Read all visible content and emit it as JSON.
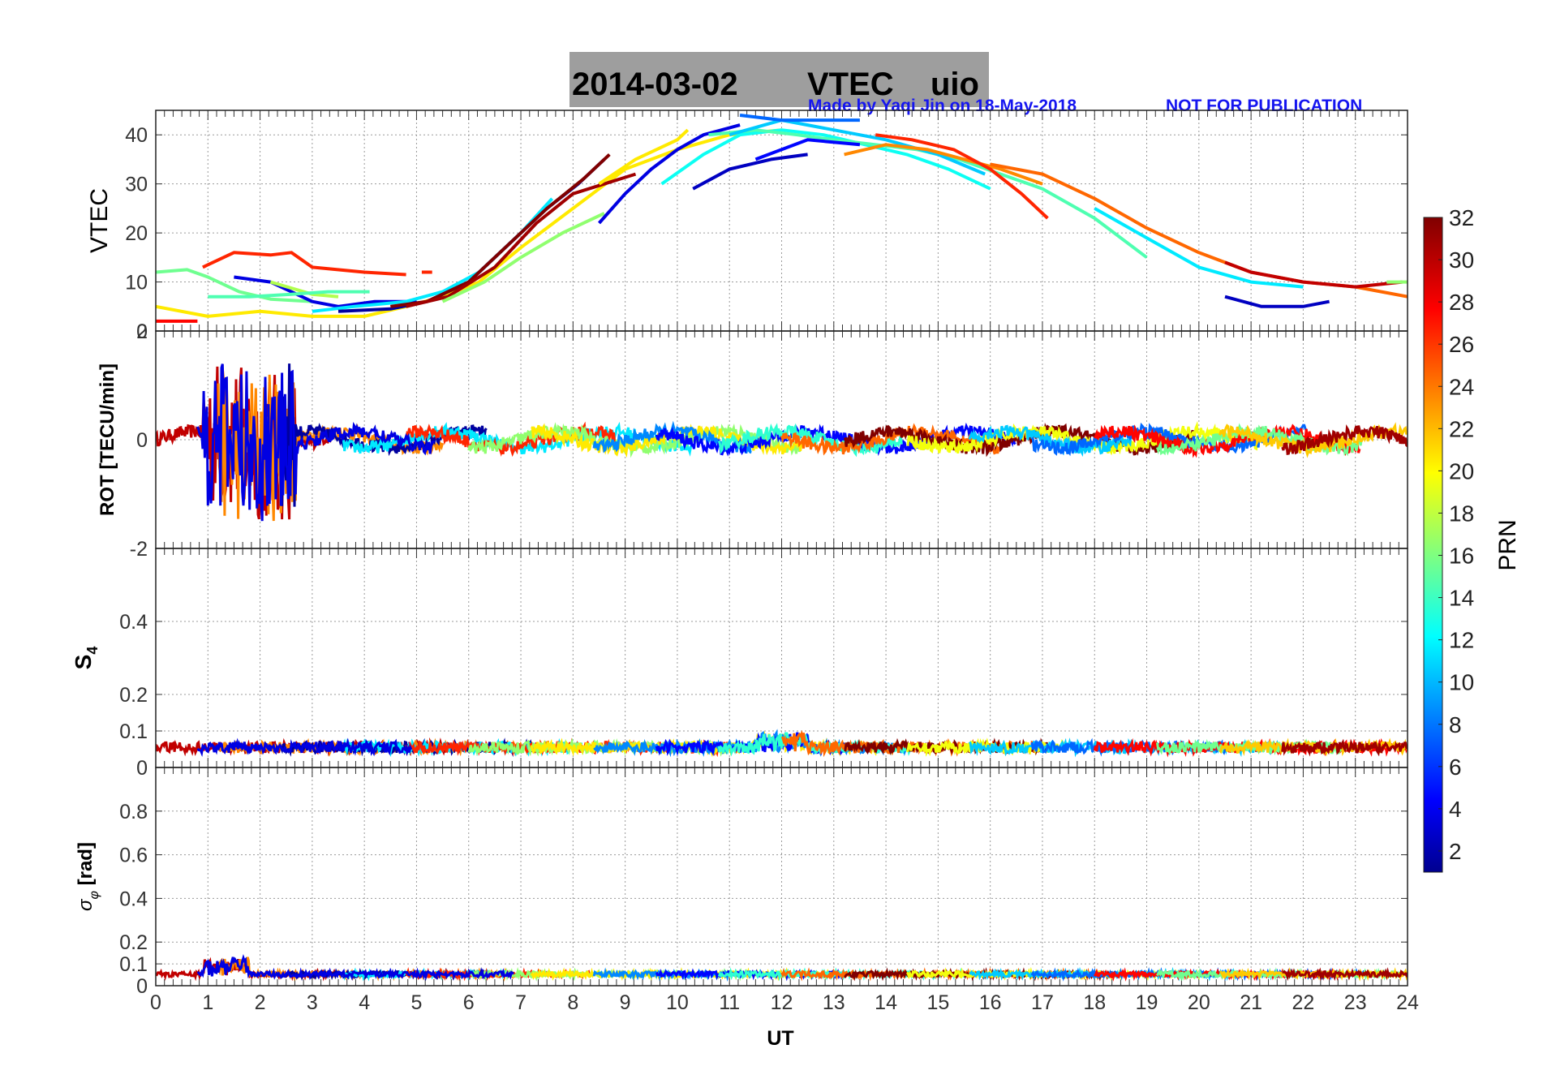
{
  "title": {
    "date": "2014-03-02",
    "name": "VTEC",
    "station": "uio"
  },
  "credit": "Made by Yaqi Jin on 18-May-2018",
  "notice": "NOT FOR PUBLICATION",
  "colors": {
    "title_bg": "#9e9e9e",
    "credit": "#1515f0",
    "grid": "#9a9a9a"
  },
  "chart_data": [
    {
      "type": "line",
      "id": "vtec",
      "ylabel": "VTEC",
      "ylim": [
        0,
        45
      ],
      "yticks": [
        {
          "v": 0,
          "label": "0"
        },
        {
          "v": 10,
          "label": "10"
        },
        {
          "v": 20,
          "label": "20"
        },
        {
          "v": 30,
          "label": "30"
        },
        {
          "v": 40,
          "label": "40"
        }
      ],
      "series": [
        {
          "prn": 28,
          "x": [
            0,
            0.8
          ],
          "y": [
            2,
            2
          ]
        },
        {
          "prn": 16,
          "x": [
            0,
            0.6,
            1.0,
            1.6,
            2.2,
            3.0
          ],
          "y": [
            12,
            12.5,
            11,
            8,
            6.5,
            6
          ]
        },
        {
          "prn": 27,
          "x": [
            0.9,
            1.5,
            2.2,
            2.6,
            3.0,
            4.0,
            4.8
          ],
          "y": [
            13,
            16,
            15.5,
            16,
            13,
            12,
            11.5
          ]
        },
        {
          "prn": 27,
          "x": [
            5.1,
            5.3
          ],
          "y": [
            12,
            12
          ]
        },
        {
          "prn": 21,
          "x": [
            0,
            1.0,
            2.0,
            3.0,
            4.0,
            4.8,
            5.5,
            6.2,
            7.0,
            8.0,
            9.0,
            10.0,
            11.0,
            12.0
          ],
          "y": [
            5,
            3,
            4,
            3,
            3,
            5,
            7,
            10,
            17,
            25,
            33,
            37,
            40,
            41
          ]
        },
        {
          "prn": 4,
          "x": [
            1.5,
            2.2,
            3.0,
            3.5,
            4.2,
            5.0
          ],
          "y": [
            11,
            10,
            6,
            5,
            6,
            6
          ]
        },
        {
          "prn": 18,
          "x": [
            2.2,
            3.0,
            3.5
          ],
          "y": [
            10,
            7.5,
            7
          ]
        },
        {
          "prn": 15,
          "x": [
            1.0,
            1.8,
            2.6,
            3.3,
            4.1
          ],
          "y": [
            7,
            7,
            7.5,
            8,
            8
          ]
        },
        {
          "prn": 12,
          "x": [
            3.0,
            3.8,
            4.8,
            5.5,
            6.2,
            7.0,
            7.6
          ],
          "y": [
            4,
            5,
            6,
            8,
            12,
            20,
            27
          ]
        },
        {
          "prn": 2,
          "x": [
            3.5,
            4.5,
            5.2,
            6.0,
            6.8,
            7.5,
            8.1,
            8.6
          ],
          "y": [
            4,
            4.5,
            6,
            10,
            18,
            25,
            30,
            35
          ]
        },
        {
          "prn": 32,
          "x": [
            4.5,
            5.2,
            6.0,
            6.8,
            7.5,
            8.2,
            8.7
          ],
          "y": [
            5,
            6,
            10,
            18,
            25,
            31,
            36
          ]
        },
        {
          "prn": 31,
          "x": [
            4.8,
            5.6,
            6.5,
            7.3,
            8.0,
            8.6,
            9.2
          ],
          "y": [
            5,
            7,
            13,
            22,
            28,
            30,
            32
          ]
        },
        {
          "prn": 17,
          "x": [
            5.5,
            6.3,
            7.0,
            7.8,
            8.6
          ],
          "y": [
            6,
            10,
            15,
            20,
            24
          ]
        },
        {
          "prn": 4,
          "x": [
            8.5,
            9.0,
            9.5,
            10.0,
            10.5,
            11.2
          ],
          "y": [
            22,
            28,
            33,
            37,
            40,
            42
          ]
        },
        {
          "prn": 21,
          "x": [
            8.5,
            9.2,
            10.0,
            10.2
          ],
          "y": [
            30,
            35,
            39,
            41
          ]
        },
        {
          "prn": 13,
          "x": [
            9.7,
            10.5,
            11.2,
            12.0,
            12.8,
            13.6,
            14.4,
            15.2,
            16.0
          ],
          "y": [
            30,
            36,
            40,
            41,
            40,
            38,
            36,
            33,
            29
          ]
        },
        {
          "prn": 15,
          "x": [
            10.6,
            11.5,
            12.3,
            13.0,
            13.8,
            14.6,
            15.4,
            16.2,
            17.0,
            18.0,
            19.0
          ],
          "y": [
            40,
            41,
            40,
            39,
            38,
            37,
            35,
            32,
            29,
            23,
            15
          ]
        },
        {
          "prn": 11,
          "x": [
            11.0,
            12.0,
            13.0,
            14.0,
            15.0,
            15.9
          ],
          "y": [
            40,
            43,
            41,
            39,
            36,
            32
          ]
        },
        {
          "prn": 3,
          "x": [
            10.3,
            11.0,
            11.8,
            12.5
          ],
          "y": [
            29,
            33,
            35,
            36
          ]
        },
        {
          "prn": 5,
          "x": [
            11.5,
            12.5,
            13.5
          ],
          "y": [
            35,
            39,
            38
          ]
        },
        {
          "prn": 8,
          "x": [
            11.2,
            12.0,
            12.8,
            13.5
          ],
          "y": [
            44,
            43,
            43,
            43
          ]
        },
        {
          "prn": 24,
          "x": [
            13.2,
            14.0,
            14.8,
            15.5,
            16.2,
            17.0
          ],
          "y": [
            36,
            38,
            37,
            35,
            33,
            30
          ]
        },
        {
          "prn": 27,
          "x": [
            13.8,
            14.5,
            15.3,
            16.0,
            16.6,
            17.1
          ],
          "y": [
            40,
            39,
            37,
            33,
            28,
            23
          ]
        },
        {
          "prn": 25,
          "x": [
            16.0,
            17.0,
            18.0,
            19.0,
            20.0,
            21.0,
            22.0,
            23.0,
            24.0
          ],
          "y": [
            34,
            32,
            27,
            21,
            16,
            12,
            10,
            9,
            7
          ]
        },
        {
          "prn": 12,
          "x": [
            18.0,
            19.0,
            20.0,
            21.0,
            22.0
          ],
          "y": [
            25,
            19,
            13,
            10,
            9
          ]
        },
        {
          "prn": 30,
          "x": [
            20.5,
            21.0,
            22.0,
            23.0,
            23.9
          ],
          "y": [
            14,
            12,
            10,
            9,
            10
          ]
        },
        {
          "prn": 3,
          "x": [
            20.5,
            21.2,
            22.0,
            22.5
          ],
          "y": [
            7,
            5,
            5,
            6
          ]
        },
        {
          "prn": 17,
          "x": [
            23.6,
            24
          ],
          "y": [
            10,
            10
          ]
        }
      ]
    },
    {
      "type": "line",
      "id": "rot",
      "ylabel": "ROT [TECU/min]",
      "ylim": [
        -2,
        2
      ],
      "yticks": [
        {
          "v": -2,
          "label": "-2"
        },
        {
          "v": 0,
          "label": "0"
        },
        {
          "v": 2,
          "label": "2"
        }
      ],
      "series_desc": "noisy ROT traces per PRN; burst near 1-2.6 UT up to about ±1.6 TECU/min"
    },
    {
      "type": "line",
      "id": "s4",
      "ylabel": "S4",
      "ylim": [
        0,
        0.6
      ],
      "yticks": [
        {
          "v": 0,
          "label": "0"
        },
        {
          "v": 0.1,
          "label": "0.1"
        },
        {
          "v": 0.2,
          "label": "0.2"
        },
        {
          "v": 0.4,
          "label": "0.4"
        }
      ],
      "series_desc": "S4 values mostly 0.02-0.08"
    },
    {
      "type": "line",
      "id": "sigma",
      "ylabel": "σφ [rad]",
      "ylim": [
        0,
        1
      ],
      "yticks": [
        {
          "v": 0,
          "label": "0"
        },
        {
          "v": 0.1,
          "label": "0.1"
        },
        {
          "v": 0.2,
          "label": "0.2"
        },
        {
          "v": 0.4,
          "label": "0.4"
        },
        {
          "v": 0.6,
          "label": "0.6"
        },
        {
          "v": 0.8,
          "label": "0.8"
        }
      ],
      "series_desc": "sigma-phi values mostly 0.03-0.08, peak about 0.14 near 1.3 UT"
    }
  ],
  "xaxis": {
    "label": "UT",
    "range": [
      0,
      24
    ],
    "ticks": [
      "0",
      "1",
      "2",
      "3",
      "4",
      "5",
      "6",
      "7",
      "8",
      "9",
      "10",
      "11",
      "12",
      "13",
      "14",
      "15",
      "16",
      "17",
      "18",
      "19",
      "20",
      "21",
      "22",
      "23",
      "24"
    ]
  },
  "colorbar": {
    "label": "PRN",
    "range": [
      1,
      32
    ],
    "ticks": [
      "2",
      "4",
      "6",
      "8",
      "10",
      "12",
      "14",
      "16",
      "18",
      "20",
      "22",
      "24",
      "26",
      "28",
      "30",
      "32"
    ]
  }
}
